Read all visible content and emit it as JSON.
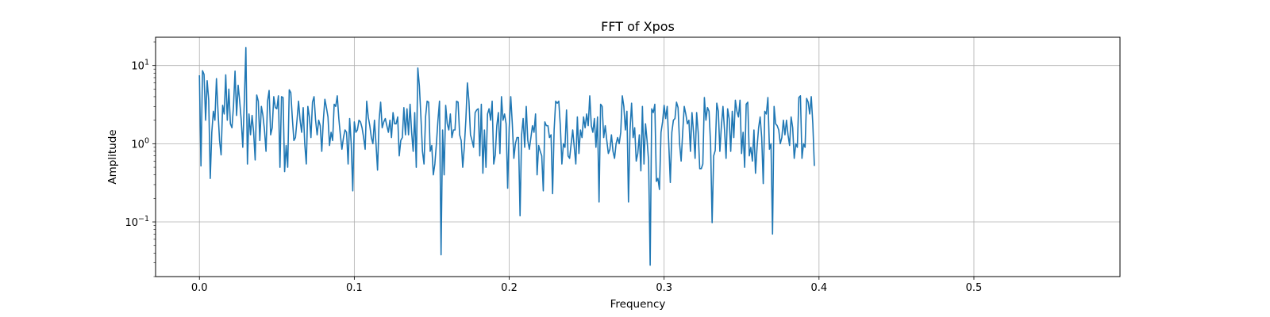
{
  "chart_data": {
    "type": "line",
    "title": "FFT of Xpos",
    "xlabel": "Frequency",
    "ylabel": "Amplitude",
    "xlim": [
      -0.0283,
      0.5943
    ],
    "ylim": [
      0.02,
      23
    ],
    "yscale": "log",
    "grid": true,
    "x_ticks": [
      {
        "value": 0.0,
        "label": "0.0"
      },
      {
        "value": 0.1,
        "label": "0.1"
      },
      {
        "value": 0.2,
        "label": "0.2"
      },
      {
        "value": 0.3,
        "label": "0.3"
      },
      {
        "value": 0.4,
        "label": "0.4"
      },
      {
        "value": 0.5,
        "label": "0.5"
      }
    ],
    "y_ticks": [
      {
        "value": 0.1,
        "base": "10",
        "exp": "−1"
      },
      {
        "value": 1,
        "base": "10",
        "exp": "0"
      },
      {
        "value": 10,
        "base": "10",
        "exp": "1"
      }
    ],
    "line_color": "#1f77b4",
    "x_step": 0.001,
    "series": [
      {
        "values": [
          7.5,
          0.52,
          8.6,
          7.7,
          2.0,
          6.4,
          3.6,
          0.36,
          1.4,
          2.6,
          2.0,
          6.8,
          2.6,
          1.1,
          0.72,
          3.1,
          2.4,
          7.6,
          2.0,
          5.0,
          1.8,
          1.6,
          3.0,
          8.5,
          2.3,
          5.6,
          3.5,
          2.0,
          0.9,
          3.5,
          17.0,
          0.55,
          2.4,
          1.3,
          2.3,
          1.4,
          0.62,
          4.2,
          3.5,
          1.1,
          3.0,
          2.3,
          1.5,
          0.8,
          3.5,
          4.8,
          1.3,
          1.6,
          4.0,
          2.9,
          2.8,
          4.1,
          0.5,
          4.0,
          3.9,
          0.44,
          0.95,
          0.5,
          4.9,
          4.5,
          2.1,
          1.1,
          1.2,
          2.0,
          3.5,
          2.0,
          1.4,
          2.9,
          1.0,
          0.55,
          3.0,
          2.2,
          1.2,
          3.4,
          4.0,
          2.0,
          1.3,
          2.0,
          1.7,
          0.8,
          2.0,
          3.7,
          2.9,
          2.2,
          0.95,
          1.4,
          1.1,
          3.2,
          3.0,
          4.1,
          2.1,
          1.3,
          0.85,
          1.2,
          1.5,
          1.4,
          0.55,
          2.1,
          1.0,
          0.25,
          1.9,
          1.4,
          1.5,
          2.0,
          1.9,
          1.6,
          1.2,
          0.85,
          3.5,
          2.2,
          1.7,
          1.2,
          1.0,
          2.0,
          1.0,
          0.46,
          2.0,
          3.4,
          1.6,
          1.9,
          2.1,
          1.7,
          1.4,
          2.0,
          1.2,
          2.5,
          1.8,
          1.8,
          2.2,
          0.7,
          1.1,
          1.2,
          2.9,
          1.3,
          2.8,
          1.3,
          3.2,
          1.4,
          0.8,
          2.5,
          0.5,
          9.3,
          5.5,
          2.2,
          0.8,
          0.55,
          2.2,
          3.5,
          3.4,
          0.8,
          0.95,
          0.4,
          0.55,
          1.0,
          2.0,
          3.5,
          0.038,
          1.5,
          0.4,
          3.1,
          1.8,
          1.5,
          2.4,
          1.2,
          1.5,
          1.5,
          3.5,
          3.4,
          1.3,
          1.1,
          0.5,
          0.9,
          2.0,
          6.0,
          3.5,
          1.3,
          1.1,
          0.9,
          2.5,
          2.7,
          2.8,
          0.7,
          3.2,
          0.42,
          1.5,
          0.5,
          2.4,
          2.8,
          2.0,
          3.5,
          0.55,
          0.72,
          1.7,
          2.5,
          0.75,
          4.0,
          2.0,
          2.4,
          1.8,
          0.27,
          1.6,
          4.0,
          1.8,
          0.65,
          1.0,
          1.2,
          1.2,
          0.12,
          1.3,
          2.1,
          0.9,
          3.0,
          1.1,
          0.85,
          1.2,
          1.7,
          1.4,
          2.4,
          0.4,
          0.95,
          0.8,
          0.7,
          0.25,
          1.9,
          1.7,
          1.7,
          1.2,
          1.3,
          0.23,
          1.5,
          3.5,
          3.3,
          3.5,
          1.7,
          0.55,
          1.0,
          0.9,
          2.7,
          0.7,
          0.65,
          1.0,
          1.5,
          0.9,
          0.55,
          2.2,
          0.75,
          1.5,
          1.2,
          2.2,
          1.6,
          2.4,
          1.7,
          4.1,
          1.7,
          1.4,
          2.1,
          0.9,
          2.2,
          0.18,
          3.2,
          3.0,
          1.2,
          1.7,
          1.1,
          0.75,
          0.85,
          1.3,
          0.8,
          0.65,
          1.0,
          1.2,
          1.0,
          1.4,
          4.1,
          3.0,
          1.5,
          2.6,
          0.18,
          1.5,
          3.3,
          1.2,
          1.6,
          0.6,
          0.75,
          1.3,
          0.45,
          3.0,
          0.55,
          1.8,
          1.1,
          0.6,
          0.028,
          2.8,
          2.5,
          3.2,
          0.33,
          0.36,
          0.26,
          1.4,
          1.9,
          3.1,
          2.1,
          3.0,
          1.0,
          0.32,
          1.4,
          2.0,
          2.1,
          3.4,
          2.9,
          1.0,
          0.6,
          1.4,
          3.0,
          2.4,
          1.8,
          2.0,
          0.8,
          2.5,
          1.4,
          0.65,
          2.5,
          1.4,
          0.48,
          0.48,
          0.55,
          3.9,
          2.0,
          2.9,
          2.6,
          1.0,
          0.098,
          0.7,
          0.82,
          3.3,
          2.6,
          0.8,
          1.7,
          3.0,
          1.5,
          0.65,
          2.8,
          2.1,
          0.8,
          2.6,
          1.2,
          3.6,
          2.6,
          2.2,
          3.6,
          0.75,
          1.4,
          0.5,
          3.2,
          3.4,
          0.7,
          0.9,
          0.6,
          1.5,
          0.42,
          0.9,
          1.6,
          2.2,
          1.2,
          0.31,
          2.6,
          2.4,
          3.9,
          0.85,
          1.0,
          0.07,
          3.0,
          1.8,
          1.7,
          1.5,
          1.0,
          1.2,
          2.0,
          1.3,
          2.0,
          1.3,
          0.95,
          2.2,
          1.6,
          0.65,
          1.0,
          0.9,
          3.9,
          4.1,
          0.65,
          1.0,
          0.9,
          3.8,
          3.4,
          2.4,
          4.0,
          1.8,
          0.52
        ]
      }
    ]
  }
}
